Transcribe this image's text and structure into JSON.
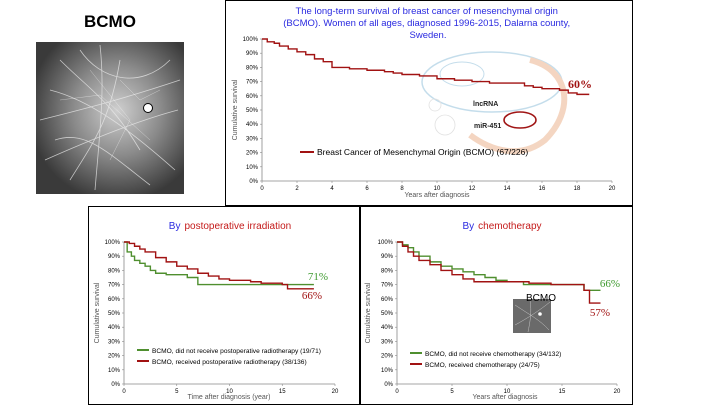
{
  "left_label": "BCMO",
  "chart_data": [
    {
      "id": "main",
      "type": "line",
      "title": "The long-term survival of breast cancer of mesenchymal origin (BCMO). Women of all ages, diagnosed 1996-2015, Dalarna county, Sweden.",
      "title_lines": [
        "The long-term survival of breast cancer of mesenchymal origin",
        "(BCMO). Women of all ages, diagnosed 1996-2015, Dalarna county,",
        "Sweden."
      ],
      "xlabel": "Years after diagnosis",
      "ylabel": "Cumulative survival",
      "xlim": [
        0,
        20
      ],
      "ylim": [
        0,
        1
      ],
      "xticks": [
        "0",
        "2",
        "4",
        "6",
        "8",
        "10",
        "12",
        "14",
        "16",
        "18",
        "20"
      ],
      "yticks": [
        "0%",
        "10%",
        "20%",
        "30%",
        "40%",
        "50%",
        "60%",
        "70%",
        "80%",
        "90%",
        "100%"
      ],
      "series": [
        {
          "name": "Breast Cancer of Mesenchymal Origin (BCMO) (67/226)",
          "color": "#a11212",
          "x": [
            0,
            0.3,
            0.7,
            1.0,
            1.5,
            2.0,
            2.5,
            3.0,
            3.5,
            4.0,
            5.0,
            6.0,
            7.0,
            7.5,
            8.0,
            9.0,
            10.0,
            11.0,
            12.0,
            13.0,
            14.0,
            15.0,
            15.5,
            16.0,
            17.0,
            17.5,
            18.0,
            18.7
          ],
          "y": [
            1.0,
            0.98,
            0.97,
            0.95,
            0.93,
            0.91,
            0.89,
            0.86,
            0.84,
            0.8,
            0.79,
            0.78,
            0.77,
            0.76,
            0.75,
            0.74,
            0.72,
            0.71,
            0.7,
            0.69,
            0.69,
            0.67,
            0.66,
            0.65,
            0.64,
            0.62,
            0.61,
            0.61
          ]
        }
      ],
      "annotations": [
        "60%",
        "lncRNA",
        "miR-451"
      ]
    },
    {
      "id": "irradiation",
      "type": "line",
      "title_prefix": "By",
      "title_highlight": "postoperative irradiation",
      "xlabel": "Time after diagnosis (year)",
      "ylabel": "Cumulative survival",
      "xlim": [
        0,
        20
      ],
      "ylim": [
        0,
        1
      ],
      "xticks": [
        "0",
        "5",
        "10",
        "15",
        "20"
      ],
      "yticks": [
        "0%",
        "10%",
        "20%",
        "30%",
        "40%",
        "50%",
        "60%",
        "70%",
        "80%",
        "90%",
        "100%"
      ],
      "series": [
        {
          "name": "BCMO, did not receive postoperative radiotherapy (19/71)",
          "color": "#4f8f2f",
          "x": [
            0,
            0.3,
            0.7,
            1.0,
            1.5,
            2.0,
            2.5,
            3.0,
            4.0,
            5.0,
            6.0,
            7.0,
            8.0,
            10.0,
            12.0,
            15.0,
            18.0
          ],
          "y": [
            1.0,
            0.93,
            0.9,
            0.87,
            0.85,
            0.83,
            0.8,
            0.78,
            0.77,
            0.77,
            0.75,
            0.7,
            0.7,
            0.7,
            0.7,
            0.7,
            0.7
          ]
        },
        {
          "name": "BCMO, received postoperative radiotherapy (38/136)",
          "color": "#a11212",
          "x": [
            0,
            0.5,
            1.0,
            1.5,
            2.0,
            3.0,
            4.0,
            5.0,
            6.0,
            7.0,
            8.0,
            9.0,
            10.0,
            12.0,
            13.0,
            15.0,
            15.5,
            18.0
          ],
          "y": [
            1.0,
            0.99,
            0.97,
            0.95,
            0.93,
            0.89,
            0.86,
            0.83,
            0.81,
            0.78,
            0.76,
            0.74,
            0.73,
            0.72,
            0.71,
            0.7,
            0.67,
            0.67
          ]
        }
      ],
      "annotations": [
        "71%",
        "66%"
      ]
    },
    {
      "id": "chemotherapy",
      "type": "line",
      "title_prefix": "By",
      "title_highlight": "chemotherapy",
      "xlabel": "Years after diagnosis",
      "ylabel": "Cumulative survival",
      "xlim": [
        0,
        20
      ],
      "ylim": [
        0,
        1
      ],
      "xticks": [
        "0",
        "5",
        "10",
        "15",
        "20"
      ],
      "yticks": [
        "0%",
        "10%",
        "20%",
        "30%",
        "40%",
        "50%",
        "60%",
        "70%",
        "80%",
        "90%",
        "100%"
      ],
      "series": [
        {
          "name": "BCMO, did not receive chemotherapy (34/132)",
          "color": "#4f8f2f",
          "x": [
            0,
            0.5,
            1.0,
            1.5,
            2.0,
            3.0,
            4.0,
            5.0,
            6.0,
            7.0,
            8.0,
            9.0,
            10.0,
            11.0,
            11.5,
            12.0,
            14.0,
            16.0,
            17.0,
            18.5
          ],
          "y": [
            1.0,
            0.98,
            0.96,
            0.93,
            0.9,
            0.86,
            0.83,
            0.81,
            0.79,
            0.77,
            0.75,
            0.73,
            0.72,
            0.72,
            0.7,
            0.7,
            0.7,
            0.7,
            0.66,
            0.66
          ]
        },
        {
          "name": "BCMO, received chemotherapy (24/75)",
          "color": "#a11212",
          "x": [
            0,
            0.5,
            1.0,
            1.5,
            2.0,
            3.0,
            4.0,
            5.0,
            6.0,
            7.0,
            8.0,
            10.0,
            12.0,
            14.0,
            16.0,
            17.0,
            17.5,
            18.5
          ],
          "y": [
            1.0,
            0.97,
            0.93,
            0.9,
            0.87,
            0.84,
            0.8,
            0.77,
            0.74,
            0.72,
            0.72,
            0.72,
            0.71,
            0.7,
            0.7,
            0.66,
            0.57,
            0.57
          ]
        }
      ],
      "annotations": [
        "66%",
        "57%",
        "BCMO"
      ]
    }
  ]
}
